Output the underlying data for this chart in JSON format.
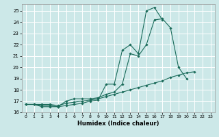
{
  "title": "",
  "xlabel": "Humidex (Indice chaleur)",
  "bg_color": "#cce8e8",
  "grid_color": "#ffffff",
  "line_color": "#1a6b5a",
  "xlim": [
    -0.5,
    23.5
  ],
  "ylim": [
    16.0,
    25.6
  ],
  "xticks": [
    0,
    1,
    2,
    3,
    4,
    5,
    6,
    7,
    8,
    9,
    10,
    11,
    12,
    13,
    14,
    15,
    16,
    17,
    18,
    19,
    20,
    21,
    22,
    23
  ],
  "yticks": [
    16,
    17,
    18,
    19,
    20,
    21,
    22,
    23,
    24,
    25
  ],
  "line1_y": [
    16.7,
    16.7,
    16.6,
    16.6,
    16.5,
    16.6,
    16.7,
    16.8,
    17.0,
    17.1,
    18.5,
    18.5,
    21.5,
    22.0,
    21.2,
    25.0,
    25.3,
    24.2,
    null,
    null,
    null,
    null,
    null,
    null
  ],
  "line2_y": [
    16.7,
    16.7,
    16.5,
    16.5,
    16.5,
    17.0,
    17.2,
    17.2,
    17.2,
    17.3,
    17.6,
    17.8,
    18.5,
    21.2,
    21.0,
    22.0,
    24.2,
    24.3,
    23.5,
    20.0,
    19.0,
    null,
    null,
    null
  ],
  "line3_y": [
    16.7,
    16.7,
    16.7,
    16.7,
    16.6,
    16.8,
    16.9,
    17.0,
    17.1,
    17.2,
    17.4,
    17.6,
    17.8,
    18.0,
    18.2,
    18.4,
    18.6,
    18.8,
    19.1,
    19.3,
    19.5,
    19.6,
    null,
    null
  ]
}
